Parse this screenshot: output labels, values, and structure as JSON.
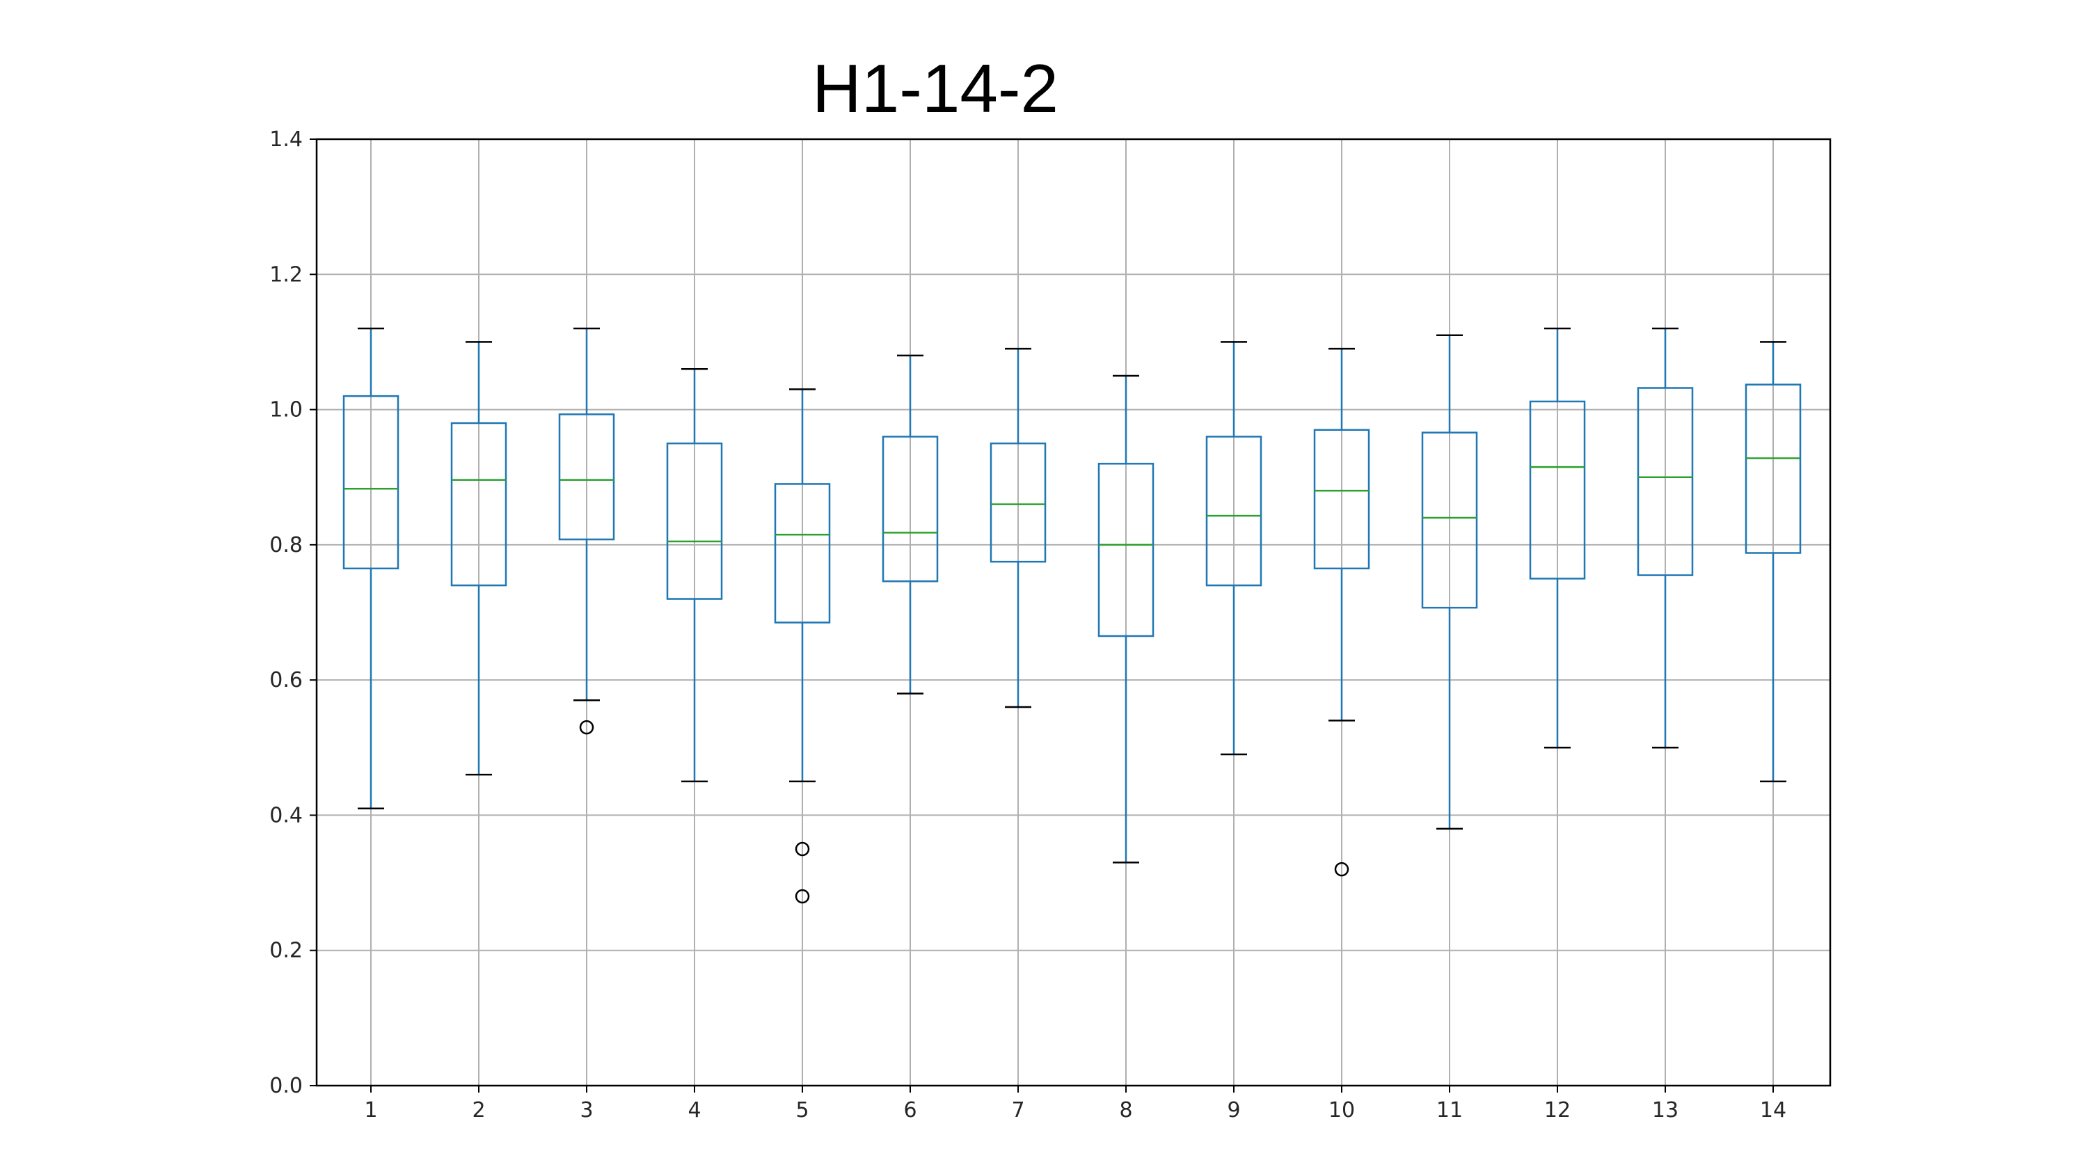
{
  "chart_data": {
    "type": "box",
    "title": "H1-14-2",
    "xlabel": "",
    "ylabel": "",
    "ylim": [
      0,
      1.4
    ],
    "yticks": [
      "0.0",
      "0.2",
      "0.4",
      "0.6",
      "0.8",
      "1.0",
      "1.2",
      "1.4"
    ],
    "grid": true,
    "categories": [
      "1",
      "2",
      "3",
      "4",
      "5",
      "6",
      "7",
      "8",
      "9",
      "10",
      "11",
      "12",
      "13",
      "14"
    ],
    "boxes": [
      {
        "label": "1",
        "whisker_low": 0.41,
        "q1": 0.765,
        "median": 0.883,
        "q3": 1.02,
        "whisker_high": 1.12,
        "outliers": []
      },
      {
        "label": "2",
        "whisker_low": 0.46,
        "q1": 0.74,
        "median": 0.896,
        "q3": 0.98,
        "whisker_high": 1.1,
        "outliers": []
      },
      {
        "label": "3",
        "whisker_low": 0.57,
        "q1": 0.808,
        "median": 0.896,
        "q3": 0.993,
        "whisker_high": 1.12,
        "outliers": [
          0.53
        ]
      },
      {
        "label": "4",
        "whisker_low": 0.45,
        "q1": 0.72,
        "median": 0.805,
        "q3": 0.95,
        "whisker_high": 1.06,
        "outliers": []
      },
      {
        "label": "5",
        "whisker_low": 0.45,
        "q1": 0.685,
        "median": 0.815,
        "q3": 0.89,
        "whisker_high": 1.03,
        "outliers": [
          0.35,
          0.28
        ]
      },
      {
        "label": "6",
        "whisker_low": 0.58,
        "q1": 0.746,
        "median": 0.818,
        "q3": 0.96,
        "whisker_high": 1.08,
        "outliers": []
      },
      {
        "label": "7",
        "whisker_low": 0.56,
        "q1": 0.775,
        "median": 0.86,
        "q3": 0.95,
        "whisker_high": 1.09,
        "outliers": []
      },
      {
        "label": "8",
        "whisker_low": 0.33,
        "q1": 0.665,
        "median": 0.8,
        "q3": 0.92,
        "whisker_high": 1.05,
        "outliers": []
      },
      {
        "label": "9",
        "whisker_low": 0.49,
        "q1": 0.74,
        "median": 0.843,
        "q3": 0.96,
        "whisker_high": 1.1,
        "outliers": []
      },
      {
        "label": "10",
        "whisker_low": 0.54,
        "q1": 0.765,
        "median": 0.88,
        "q3": 0.97,
        "whisker_high": 1.09,
        "outliers": [
          0.32
        ]
      },
      {
        "label": "11",
        "whisker_low": 0.38,
        "q1": 0.707,
        "median": 0.84,
        "q3": 0.966,
        "whisker_high": 1.11,
        "outliers": []
      },
      {
        "label": "12",
        "whisker_low": 0.5,
        "q1": 0.75,
        "median": 0.915,
        "q3": 1.012,
        "whisker_high": 1.12,
        "outliers": []
      },
      {
        "label": "13",
        "whisker_low": 0.5,
        "q1": 0.755,
        "median": 0.9,
        "q3": 1.032,
        "whisker_high": 1.12,
        "outliers": []
      },
      {
        "label": "14",
        "whisker_low": 0.45,
        "q1": 0.788,
        "median": 0.928,
        "q3": 1.037,
        "whisker_high": 1.1,
        "outliers": []
      }
    ],
    "colors": {
      "box": "#1f77b4",
      "median": "#2ca02c",
      "whisker_cap": "#000000",
      "outlier": "#000000",
      "grid": "#b0b0b0",
      "axis": "#000000"
    }
  }
}
